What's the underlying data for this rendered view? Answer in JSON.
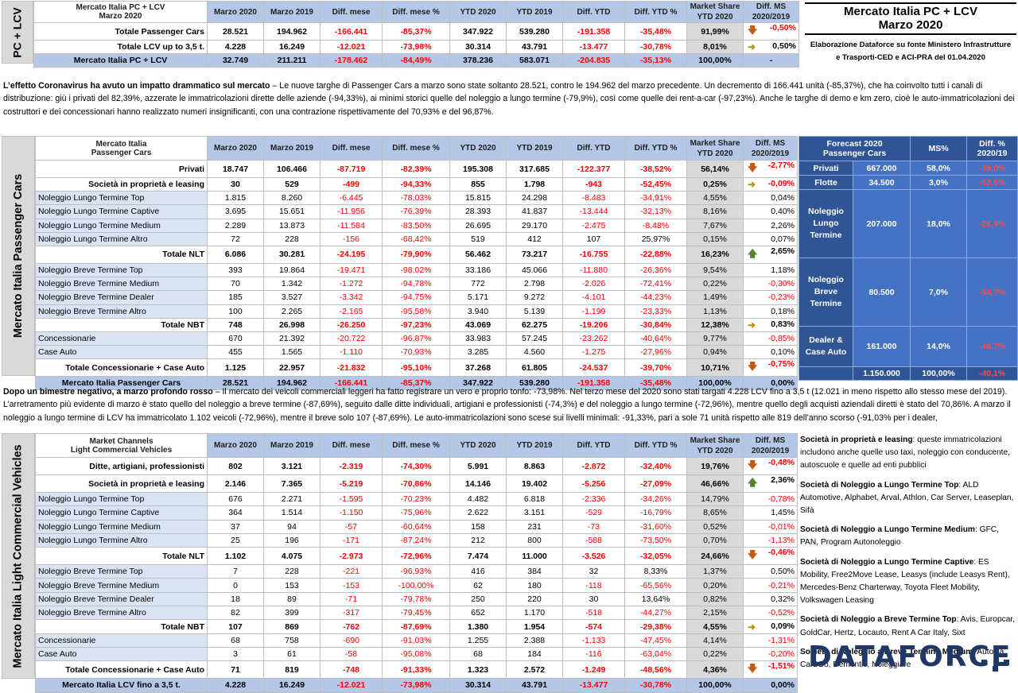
{
  "title_box": {
    "line1": "Mercato Italia PC + LCV",
    "line2": "Marzo 2020",
    "source_line1": "Elaborazione Dataforce su fonte Ministero Infrastrutture",
    "source_line2": "e Trasporti-CED e ACI-PRA del 01.04.2020"
  },
  "top": {
    "side_label": "PC + LCV",
    "corner": [
      "Mercato Italia PC + LCV",
      "Marzo 2020"
    ],
    "headers": [
      "Marzo 2020",
      "Marzo 2019",
      "Diff. mese",
      "Diff. mese %",
      "YTD 2020",
      "YTD 2019",
      "Diff. YTD",
      "Diff. YTD %",
      "Market Share YTD 2020",
      "Diff. MS 2020/2019"
    ],
    "rows": [
      {
        "label": "Totale Passenger Cars",
        "v": [
          "28.521",
          "194.962",
          "-166.441",
          "-85,37%",
          "347.922",
          "539.280",
          "-191.358",
          "-35,48%",
          "91,99%",
          "-0,50%"
        ],
        "arrow": "down"
      },
      {
        "label": "Totale LCV up to 3,5 t.",
        "v": [
          "4.228",
          "16.249",
          "-12.021",
          "-73,98%",
          "30.314",
          "43.791",
          "-13.477",
          "-30,78%",
          "8,01%",
          "0,50%"
        ],
        "arrow": "side"
      },
      {
        "label": "Mercato Italia PC + LCV",
        "v": [
          "32.749",
          "211.211",
          "-178.462",
          "-84,49%",
          "378.236",
          "583.071",
          "-204.835",
          "-35,13%",
          "100,00%",
          "-"
        ],
        "arrow": ""
      }
    ]
  },
  "para1": {
    "bold": "L’effetto Coronavirus ha avuto un impatto drammatico sul mercato",
    "text": " – Le nuove targhe di Passenger Cars a marzo sono state soltanto 28.521, contro le 194.962 del marzo precedente. Un decremento di 166.441 unità (-85,37%), che ha coinvolto tutti i canali di distribuzione: giù i privati del 82,39%, azzerate le immatricolazioni dirette delle aziende (-94,33%), ai minimi storici quelle del noleggio a lungo termine (-79,9%), così come quelle dei rent-a-car (-97,23%). Anche le targhe di demo e km zero, cioè le auto-immatricolazioni dei costruttori e dei concessionari hanno realizzato numeri insignificanti, con una contrazione rispettivamente del 70,93% e del 96,87%."
  },
  "pc": {
    "side_label": "Mercato Italia Passenger Cars",
    "corner": [
      "Mercato Italia",
      "Passenger Cars"
    ],
    "headers": [
      "Marzo 2020",
      "Marzo 2019",
      "Diff. mese",
      "Diff. mese %",
      "YTD 2020",
      "YTD 2019",
      "Diff. YTD",
      "Diff. YTD %",
      "Market Share YTD 2020",
      "Diff. MS 2020/2019"
    ],
    "rows": [
      {
        "k": "sub",
        "label": "Privati",
        "v": [
          "18.747",
          "106.466",
          "-87.719",
          "-82,39%",
          "195.308",
          "317.685",
          "-122.377",
          "-38,52%",
          "56,14%",
          "-2,77%"
        ],
        "arrow": "down"
      },
      {
        "k": "sub",
        "label": "Società in proprietà e leasing",
        "v": [
          "30",
          "529",
          "-499",
          "-94,33%",
          "855",
          "1.798",
          "-943",
          "-52,45%",
          "0,25%",
          "-0,09%"
        ],
        "arrow": "side"
      },
      {
        "k": "chan",
        "label": "Noleggio Lungo Termine Top",
        "v": [
          "1.815",
          "8.260",
          "-6.445",
          "-78,03%",
          "15.815",
          "24.298",
          "-8.483",
          "-34,91%",
          "4,55%",
          "0,04%"
        ],
        "arrow": ""
      },
      {
        "k": "chan",
        "label": "Noleggio Lungo Termine Captive",
        "v": [
          "3.695",
          "15.651",
          "-11.956",
          "-76,39%",
          "28.393",
          "41.837",
          "-13.444",
          "-32,13%",
          "8,16%",
          "0,40%"
        ],
        "arrow": ""
      },
      {
        "k": "chan",
        "label": "Noleggio Lungo Termine Medium",
        "v": [
          "2.289",
          "13.873",
          "-11.584",
          "-83,50%",
          "26.695",
          "29.170",
          "-2.475",
          "-8,48%",
          "7,67%",
          "2,26%"
        ],
        "arrow": ""
      },
      {
        "k": "chan",
        "label": "Noleggio Lungo Termine Altro",
        "v": [
          "72",
          "228",
          "-156",
          "-68,42%",
          "519",
          "412",
          "107",
          "25,97%",
          "0,15%",
          "0,07%"
        ],
        "arrow": ""
      },
      {
        "k": "sub",
        "label": "Totale NLT",
        "v": [
          "6.086",
          "30.281",
          "-24.195",
          "-79,90%",
          "56.462",
          "73.217",
          "-16.755",
          "-22,88%",
          "16,23%",
          "2,65%"
        ],
        "arrow": "up"
      },
      {
        "k": "chan",
        "label": "Noleggio Breve Termine Top",
        "v": [
          "393",
          "19.864",
          "-19.471",
          "-98,02%",
          "33.186",
          "45.066",
          "-11.880",
          "-26,36%",
          "9,54%",
          "1,18%"
        ],
        "arrow": ""
      },
      {
        "k": "chan",
        "label": "Noleggio Breve Termine Medium",
        "v": [
          "70",
          "1.342",
          "-1.272",
          "-94,78%",
          "772",
          "2.798",
          "-2.026",
          "-72,41%",
          "0,22%",
          "-0,30%"
        ],
        "arrow": ""
      },
      {
        "k": "chan",
        "label": "Noleggio Breve Termine Dealer",
        "v": [
          "185",
          "3.527",
          "-3.342",
          "-94,75%",
          "5.171",
          "9.272",
          "-4.101",
          "-44,23%",
          "1,49%",
          "-0,23%"
        ],
        "arrow": ""
      },
      {
        "k": "chan",
        "label": "Noleggio Breve Termine Altro",
        "v": [
          "100",
          "2.265",
          "-2.165",
          "-95,58%",
          "3.940",
          "5.139",
          "-1.199",
          "-23,33%",
          "1,13%",
          "0,18%"
        ],
        "arrow": ""
      },
      {
        "k": "sub",
        "label": "Totale NBT",
        "v": [
          "748",
          "26.998",
          "-26.250",
          "-97,23%",
          "43.069",
          "62.275",
          "-19.206",
          "-30,84%",
          "12,38%",
          "0,83%"
        ],
        "arrow": "side"
      },
      {
        "k": "chan",
        "label": "Concessionarie",
        "v": [
          "670",
          "21.392",
          "-20.722",
          "-96,87%",
          "33.983",
          "57.245",
          "-23.262",
          "-40,64%",
          "9,77%",
          "-0,85%"
        ],
        "arrow": ""
      },
      {
        "k": "chan",
        "label": "Case Auto",
        "v": [
          "455",
          "1.565",
          "-1.110",
          "-70,93%",
          "3.285",
          "4.560",
          "-1.275",
          "-27,96%",
          "0,94%",
          "0,10%"
        ],
        "arrow": ""
      },
      {
        "k": "sub",
        "label": "Totale Concessionarie + Case Auto",
        "v": [
          "1.125",
          "22.957",
          "-21.832",
          "-95,10%",
          "37.268",
          "61.805",
          "-24.537",
          "-39,70%",
          "10,71%",
          "-0,75%"
        ],
        "arrow": "down"
      },
      {
        "k": "tot",
        "label": "Mercato Italia Passenger Cars",
        "v": [
          "28.521",
          "194.962",
          "-166.441",
          "-85,37%",
          "347.922",
          "539.280",
          "-191.358",
          "-35,48%",
          "100,00%",
          "0,00%"
        ],
        "arrow": ""
      }
    ]
  },
  "forecast": {
    "header": [
      "Forecast 2020",
      "Passenger Cars"
    ],
    "col_ms": "MS%",
    "col_diff": [
      "Diff. %",
      "2020/19"
    ],
    "rows": [
      {
        "label": "Privati",
        "value": "667.000",
        "ms": "58,0%",
        "diff": "-39,0%"
      },
      {
        "label": "Flotte",
        "value": "34.500",
        "ms": "3,0%",
        "diff": "-63,5%"
      },
      {
        "label": "Noleggio Lungo Termine",
        "value": "207.000",
        "ms": "18,0%",
        "diff": "-26,4%"
      },
      {
        "label": "Noleggio Breve Termine",
        "value": "80.500",
        "ms": "7,0%",
        "diff": "-54,7%"
      },
      {
        "label": "Dealer & Case Auto",
        "value": "161.000",
        "ms": "14,0%",
        "diff": "-40,7%"
      }
    ],
    "total": {
      "value": "1.150.000",
      "ms": "100,00%",
      "diff": "-40,1%"
    }
  },
  "para2": {
    "bold": "Dopo un bimestre negativo, a marzo profondo rosso",
    "text": " – Il mercato dei veicoli commerciali leggeri ha fatto registrare un vero e proprio tonfo: -73,98%. Nel terzo mese del 2020 sono stati targati 4.228 LCV fino a 3,5 t (12.021 in meno rispetto allo stesso mese del 2019). L’arretramento più evidente di marzo è stato quello del noleggio a breve termine (-87,69%), seguito dalle ditte individuali, artigiani e professionisti (-74,3%) e del noleggio a lungo termine (-72,96%), mentre quello degli acquisti aziendali diretti è stato del 70,86%. A marzo il noleggio a lungo termine di LCV ha immatricolato 1.102 veicoli (-72,96%), mentre il breve solo 107 (-87,69%). Le auto-immatricolazioni sono scese sui livelli minimali: -91,33%, pari a sole 71 unità rispetto alle 819 dell’anno scorso (-91,03% per i dealer,"
  },
  "lcv": {
    "side_label": "Mercato Italia Light Commercial Vehicles",
    "corner": [
      "Market Channels",
      "Light Commercial Vehicles"
    ],
    "headers": [
      "Marzo 2020",
      "Marzo 2019",
      "Diff. mese",
      "Diff. mese %",
      "YTD 2020",
      "YTD 2019",
      "Diff. YTD",
      "Diff. YTD %",
      "Market Share YTD 2020",
      "Diff. MS 2020/2019"
    ],
    "rows": [
      {
        "k": "sub",
        "label": "Ditte, artigiani, professionisti",
        "v": [
          "802",
          "3.121",
          "-2.319",
          "-74,30%",
          "5.991",
          "8.863",
          "-2.872",
          "-32,40%",
          "19,76%",
          "-0,48%"
        ],
        "arrow": "down"
      },
      {
        "k": "sub",
        "label": "Società in proprietà e leasing",
        "v": [
          "2.146",
          "7.365",
          "-5.219",
          "-70,86%",
          "14.146",
          "19.402",
          "-5.256",
          "-27,09%",
          "46,66%",
          "2,36%"
        ],
        "arrow": "up"
      },
      {
        "k": "chan",
        "label": "Noleggio Lungo Termine Top",
        "v": [
          "676",
          "2.271",
          "-1.595",
          "-70,23%",
          "4.482",
          "6.818",
          "-2.336",
          "-34,26%",
          "14,79%",
          "-0,78%"
        ],
        "arrow": ""
      },
      {
        "k": "chan",
        "label": "Noleggio Lungo Termine Captive",
        "v": [
          "364",
          "1.514",
          "-1.150",
          "-75,96%",
          "2.622",
          "3.151",
          "-529",
          "-16,79%",
          "8,65%",
          "1,45%"
        ],
        "arrow": ""
      },
      {
        "k": "chan",
        "label": "Noleggio Lungo Termine Medium",
        "v": [
          "37",
          "94",
          "-57",
          "-60,64%",
          "158",
          "231",
          "-73",
          "-31,60%",
          "0,52%",
          "-0,01%"
        ],
        "arrow": ""
      },
      {
        "k": "chan",
        "label": "Noleggio Lungo Termine Altro",
        "v": [
          "25",
          "196",
          "-171",
          "-87,24%",
          "212",
          "800",
          "-588",
          "-73,50%",
          "0,70%",
          "-1,13%"
        ],
        "arrow": ""
      },
      {
        "k": "sub",
        "label": "Totale NLT",
        "v": [
          "1.102",
          "4.075",
          "-2.973",
          "-72,96%",
          "7.474",
          "11.000",
          "-3.526",
          "-32,05%",
          "24,66%",
          "-0,46%"
        ],
        "arrow": "down"
      },
      {
        "k": "chan",
        "label": "Noleggio Breve Termine Top",
        "v": [
          "7",
          "228",
          "-221",
          "-96,93%",
          "416",
          "384",
          "32",
          "8,33%",
          "1,37%",
          "0,50%"
        ],
        "arrow": ""
      },
      {
        "k": "chan",
        "label": "Noleggio Breve Termine Medium",
        "v": [
          "0",
          "153",
          "-153",
          "-100,00%",
          "62",
          "180",
          "-118",
          "-65,56%",
          "0,20%",
          "-0,21%"
        ],
        "arrow": ""
      },
      {
        "k": "chan",
        "label": "Noleggio Breve Termine Dealer",
        "v": [
          "18",
          "89",
          "-71",
          "-79,78%",
          "250",
          "220",
          "30",
          "13,64%",
          "0,82%",
          "0,32%"
        ],
        "arrow": ""
      },
      {
        "k": "chan",
        "label": "Noleggio Breve Termine Altro",
        "v": [
          "82",
          "399",
          "-317",
          "-79,45%",
          "652",
          "1.170",
          "-518",
          "-44,27%",
          "2,15%",
          "-0,52%"
        ],
        "arrow": ""
      },
      {
        "k": "sub",
        "label": "Totale NBT",
        "v": [
          "107",
          "869",
          "-762",
          "-87,69%",
          "1.380",
          "1.954",
          "-574",
          "-29,38%",
          "4,55%",
          "0,09%"
        ],
        "arrow": "side"
      },
      {
        "k": "chan",
        "label": "Concessionarie",
        "v": [
          "68",
          "758",
          "-690",
          "-91,03%",
          "1.255",
          "2.388",
          "-1.133",
          "-47,45%",
          "4,14%",
          "-1,31%"
        ],
        "arrow": ""
      },
      {
        "k": "chan",
        "label": "Case Auto",
        "v": [
          "3",
          "61",
          "-58",
          "-95,08%",
          "68",
          "184",
          "-116",
          "-63,04%",
          "0,22%",
          "-0,20%"
        ],
        "arrow": ""
      },
      {
        "k": "sub",
        "label": "Totale Concessionarie + Case Auto",
        "v": [
          "71",
          "819",
          "-748",
          "-91,33%",
          "1.323",
          "2.572",
          "-1.249",
          "-48,56%",
          "4,36%",
          "-1,51%"
        ],
        "arrow": "down"
      },
      {
        "k": "tot",
        "label": "Mercato Italia LCV fino a 3,5 t.",
        "v": [
          "4.228",
          "16.249",
          "-12.021",
          "-73,98%",
          "30.314",
          "43.791",
          "-13.477",
          "-30,78%",
          "100,00%",
          "0,00%"
        ],
        "arrow": ""
      }
    ]
  },
  "notes": [
    {
      "b": "Società in proprietà e leasing",
      "t": ": queste immatricolazioni includono anche quelle uso taxi, noleggio con conducente, autoscuole e quelle ad enti pubblici"
    },
    {
      "b": "Società di Noleggio a Lungo Termine Top",
      "t": ": ALD Automotive, Alphabet, Arval, Athlon, Car Server, Leaseplan, Sifà"
    },
    {
      "b": "Società di Noleggio a Lungo Termine Medium",
      "t": ": GFC, PAN, Program Autonoleggio"
    },
    {
      "b": "Società di Noleggio a Lungo Termine Captive",
      "t": ": ES Mobility, Free2Move Lease, Leasys (include Leasys Rent), Mercedes-Benz Charterway, Toyota Fleet Mobility, Volkswagen Leasing"
    },
    {
      "b": "Società di Noleggio a Breve Termine Top",
      "t": ": Avis, Europcar, GoldCar, Hertz, Locauto, Rent A Car Italy, Sixt"
    },
    {
      "b": "Società di Noleggio a Breve Termine Medium",
      "t": ": Autovia, Car2Go, Demontis, Noleggiare"
    }
  ],
  "logo": "DATAFORCE",
  "colors": {
    "header": "#b4c7e7",
    "channel": "#dae3f3",
    "neg": "#ff0000",
    "forecast": "#2f5597",
    "arrow_down": "#c55a11",
    "arrow_up": "#548235",
    "arrow_side": "#bf9000"
  }
}
